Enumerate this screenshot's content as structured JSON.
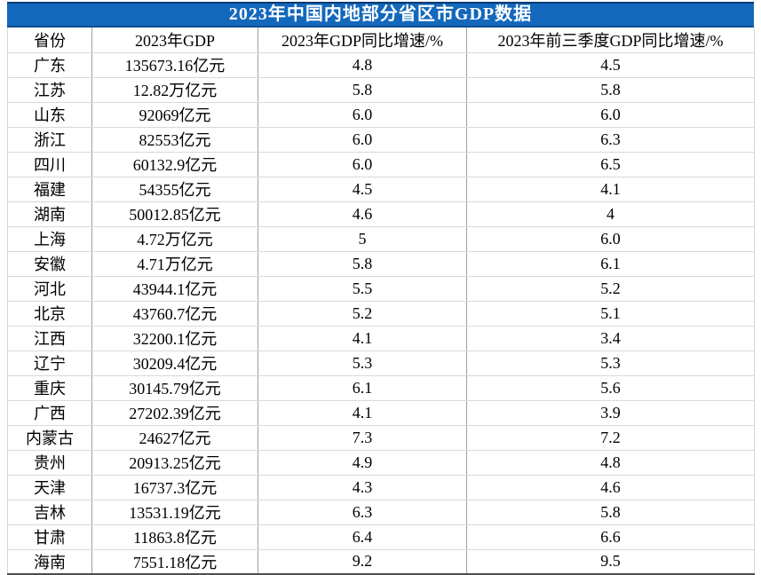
{
  "title": "2023年中国内地部分省区市GDP数据",
  "colors": {
    "title_bg": "#1368BC",
    "title_text": "#FFFFFF",
    "row_border": "#D9D9D9",
    "column_border": "#A0A0A0",
    "bottom_border": "#4D4D4D"
  },
  "chart_data": {
    "type": "table",
    "title": "2023年中国内地部分省区市GDP数据",
    "columns": [
      "省份",
      "2023年GDP",
      "2023年GDP同比增速/%",
      "2023年前三季度GDP同比增速/%"
    ],
    "rows": [
      [
        "广东",
        "135673.16亿元",
        "4.8",
        "4.5"
      ],
      [
        "江苏",
        "12.82万亿元",
        "5.8",
        "5.8"
      ],
      [
        "山东",
        "92069亿元",
        "6.0",
        "6.0"
      ],
      [
        "浙江",
        "82553亿元",
        "6.0",
        "6.3"
      ],
      [
        "四川",
        "60132.9亿元",
        "6.0",
        "6.5"
      ],
      [
        "福建",
        "54355亿元",
        "4.5",
        "4.1"
      ],
      [
        "湖南",
        "50012.85亿元",
        "4.6",
        "4"
      ],
      [
        "上海",
        "4.72万亿元",
        "5",
        "6.0"
      ],
      [
        "安徽",
        "4.71万亿元",
        "5.8",
        "6.1"
      ],
      [
        "河北",
        "43944.1亿元",
        "5.5",
        "5.2"
      ],
      [
        "北京",
        "43760.7亿元",
        "5.2",
        "5.1"
      ],
      [
        "江西",
        "32200.1亿元",
        "4.1",
        "3.4"
      ],
      [
        "辽宁",
        "30209.4亿元",
        "5.3",
        "5.3"
      ],
      [
        "重庆",
        "30145.79亿元",
        "6.1",
        "5.6"
      ],
      [
        "广西",
        "27202.39亿元",
        "4.1",
        "3.9"
      ],
      [
        "内蒙古",
        "24627亿元",
        "7.3",
        "7.2"
      ],
      [
        "贵州",
        "20913.25亿元",
        "4.9",
        "4.8"
      ],
      [
        "天津",
        "16737.3亿元",
        "4.3",
        "4.6"
      ],
      [
        "吉林",
        "13531.19亿元",
        "6.3",
        "5.8"
      ],
      [
        "甘肃",
        "11863.8亿元",
        "6.4",
        "6.6"
      ],
      [
        "海南",
        "7551.18亿元",
        "9.2",
        "9.5"
      ]
    ]
  }
}
